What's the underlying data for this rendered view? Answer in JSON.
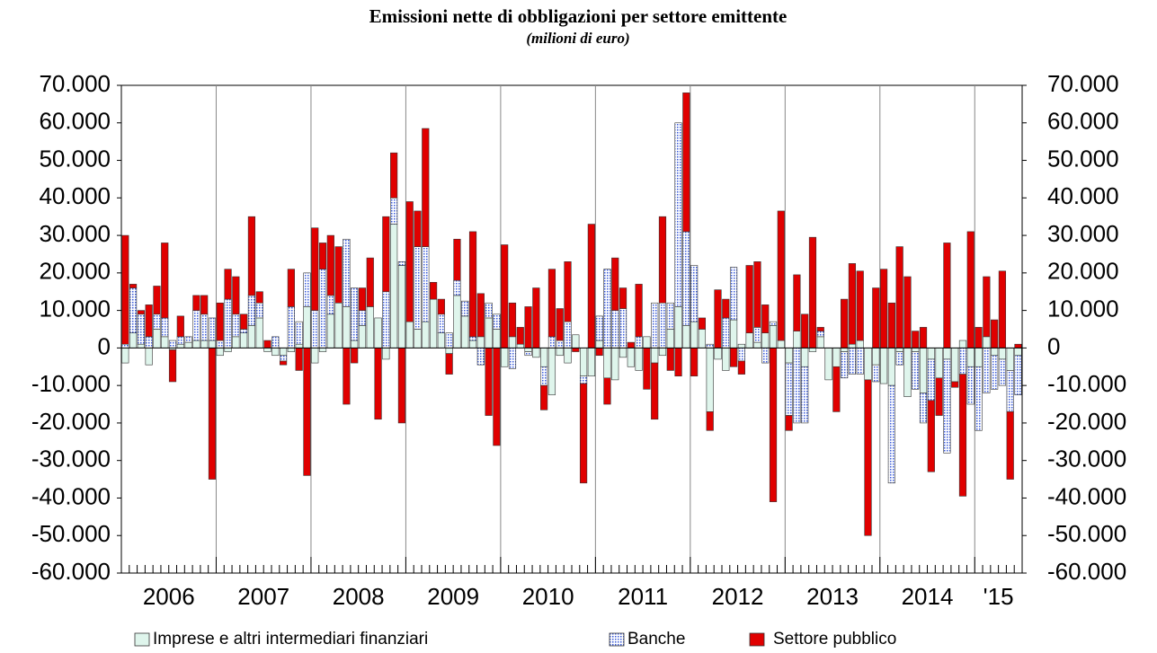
{
  "chart_data": {
    "type": "stacked-bar",
    "title": "Emissioni nette di obbligazioni per settore emittente",
    "subtitle": "(milioni di euro)",
    "categories": [
      null,
      null,
      null,
      null,
      null,
      null,
      "2006",
      null,
      null,
      null,
      null,
      null,
      null,
      null,
      null,
      null,
      null,
      null,
      "2007",
      null,
      null,
      null,
      null,
      null,
      null,
      null,
      null,
      null,
      null,
      null,
      "2008",
      null,
      null,
      null,
      null,
      null,
      null,
      null,
      null,
      null,
      null,
      null,
      "2009",
      null,
      null,
      null,
      null,
      null,
      null,
      null,
      null,
      null,
      null,
      null,
      "2010",
      null,
      null,
      null,
      null,
      null,
      null,
      null,
      null,
      null,
      null,
      null,
      "2011",
      null,
      null,
      null,
      null,
      null,
      null,
      null,
      null,
      null,
      null,
      null,
      "2012",
      null,
      null,
      null,
      null,
      null,
      null,
      null,
      null,
      null,
      null,
      null,
      "2013",
      null,
      null,
      null,
      null,
      null,
      null,
      null,
      null,
      null,
      null,
      null,
      "2014",
      null,
      null,
      null,
      null,
      null,
      null,
      null,
      null,
      "'15",
      null,
      null
    ],
    "series": [
      {
        "name": "Imprese e altri intermediari finanziari",
        "color": "#dff5ec",
        "values": [
          -4000,
          4000,
          1000,
          -4500,
          5000,
          3000,
          -500,
          1000,
          1500,
          2000,
          2000,
          2000,
          -2000,
          -1000,
          3000,
          4000,
          6000,
          8000,
          -1000,
          -2000,
          -2000,
          -1000,
          1000,
          11000,
          -4000,
          -1000,
          9000,
          12000,
          11000,
          2000,
          6000,
          11000,
          8000,
          -3000,
          33000,
          22000,
          7000,
          5000,
          7000,
          13000,
          4000,
          -1500,
          14000,
          8500,
          2000,
          3000,
          8000,
          5000,
          -5000,
          3000,
          1000,
          -1000,
          -2500,
          -5000,
          -12500,
          -2000,
          -4000,
          3500,
          -7500,
          -7500,
          2000,
          -8000,
          -8500,
          -2500,
          -5000,
          -6000,
          3000,
          -4000,
          -2000,
          5000,
          11000,
          6000,
          7000,
          5000,
          -17000,
          -3000,
          -6000,
          7500,
          1000,
          4000,
          1500,
          4000,
          6000,
          2000,
          -4000,
          4500,
          -5000,
          -1000,
          3000,
          -8500,
          -5000,
          -1000,
          1000,
          2000,
          -8500,
          -4500,
          -9500,
          -10000,
          -1000,
          -13000,
          -1000,
          -12000,
          -3000,
          -8000,
          -3000,
          -9000,
          2000,
          -5000,
          -5000,
          3000,
          -2000,
          -3000,
          -6000,
          -2000
        ]
      },
      {
        "name": "Banche",
        "color": "#3a5bd9",
        "values": [
          1000,
          12000,
          8000,
          3000,
          4000,
          5000,
          2000,
          2000,
          1500,
          8000,
          7000,
          6000,
          2000,
          13000,
          6000,
          1000,
          8000,
          4000,
          0,
          3000,
          -1500,
          11000,
          6000,
          9000,
          10000,
          21000,
          5000,
          0,
          18000,
          14000,
          4000,
          0,
          0,
          15000,
          7000,
          1000,
          0,
          22000,
          20000,
          0,
          5000,
          4000,
          4000,
          4000,
          1000,
          -4500,
          4000,
          4000,
          0,
          -5500,
          0,
          -1000,
          0,
          -5000,
          3000,
          2000,
          7000,
          0,
          -2000,
          0,
          6500,
          21000,
          10000,
          10500,
          0,
          3000,
          0,
          12000,
          12000,
          7000,
          49000,
          25000,
          15000,
          0,
          1000,
          0,
          8000,
          14000,
          -3500,
          0,
          4000,
          -4000,
          1000,
          0,
          -14000,
          -20000,
          -15000,
          0,
          1500,
          0,
          0,
          -7000,
          -7000,
          -7000,
          0,
          -4500,
          0,
          -26000,
          -3500,
          0,
          -10000,
          -8000,
          -11000,
          0,
          -25000,
          0,
          -7000,
          -10000,
          -17000,
          -12000,
          -9000,
          -7000,
          -11000,
          -10500
        ]
      },
      {
        "name": "Settore pubblico",
        "color": "#e00000",
        "values": [
          29000,
          1000,
          1000,
          8500,
          7500,
          20000,
          -8500,
          5500,
          0,
          4000,
          5000,
          -35000,
          10000,
          8000,
          10000,
          4000,
          21000,
          3000,
          2000,
          0,
          -1000,
          10000,
          -6000,
          -34000,
          22000,
          7000,
          16000,
          15000,
          -15000,
          -4000,
          6000,
          13000,
          -19000,
          20000,
          12000,
          -20000,
          32000,
          9500,
          31500,
          4500,
          4000,
          -5500,
          11000,
          0,
          28000,
          11500,
          -18000,
          -26000,
          27500,
          9000,
          4500,
          11000,
          16000,
          -6500,
          18000,
          8500,
          16000,
          -1000,
          -26500,
          33000,
          -2000,
          -7000,
          14000,
          5500,
          1500,
          14000,
          -11000,
          -15000,
          23000,
          -6000,
          -7500,
          37000,
          -7500,
          3000,
          -5000,
          15500,
          5000,
          -5000,
          -3500,
          18000,
          17500,
          7500,
          -41000,
          34500,
          -4000,
          15000,
          9000,
          29500,
          1000,
          0,
          -12000,
          13000,
          21500,
          18500,
          -41500,
          16000,
          21000,
          12000,
          27000,
          19000,
          4500,
          5500,
          -19000,
          -10000,
          28000,
          -1500,
          -32500,
          31000,
          5500,
          16000,
          7500,
          20500,
          -18000,
          1000
        ]
      }
    ],
    "ylim": [
      -60000,
      70000
    ],
    "yticks": [
      {
        "value": -60000,
        "label": "-60.000"
      },
      {
        "value": -50000,
        "label": "-50.000"
      },
      {
        "value": -40000,
        "label": "-40.000"
      },
      {
        "value": -30000,
        "label": "-30.000"
      },
      {
        "value": -20000,
        "label": "-20.000"
      },
      {
        "value": -10000,
        "label": "-10.000"
      },
      0,
      {
        "value": 10000,
        "label": "10.000"
      },
      {
        "value": 20000,
        "label": "20.000"
      },
      {
        "value": 30000,
        "label": "30.000"
      },
      {
        "value": 40000,
        "label": "40.000"
      },
      {
        "value": 50000,
        "label": "50.000"
      },
      {
        "value": 60000,
        "label": "60.000"
      },
      {
        "value": 70000,
        "label": "70.000"
      }
    ],
    "y2lim": [
      -60000,
      70000
    ],
    "y2ticks": [
      {
        "value": -60000,
        "label": "-60.000"
      },
      {
        "value": -50000,
        "label": "-50.000"
      },
      {
        "value": -40000,
        "label": "-40.000"
      },
      {
        "value": -30000,
        "label": "-30.000"
      },
      {
        "value": -20000,
        "label": "-20.000"
      },
      {
        "value": -10000,
        "label": "-10.000"
      },
      0,
      {
        "value": 10000,
        "label": "10.000"
      },
      {
        "value": 20000,
        "label": "20.000"
      },
      {
        "value": 30000,
        "label": "30.000"
      },
      {
        "value": 40000,
        "label": "40.000"
      },
      {
        "value": 50000,
        "label": "50.000"
      },
      {
        "value": 60000,
        "label": "60.000"
      },
      {
        "value": 70000,
        "label": "70.000"
      }
    ],
    "legend": "bottom"
  }
}
